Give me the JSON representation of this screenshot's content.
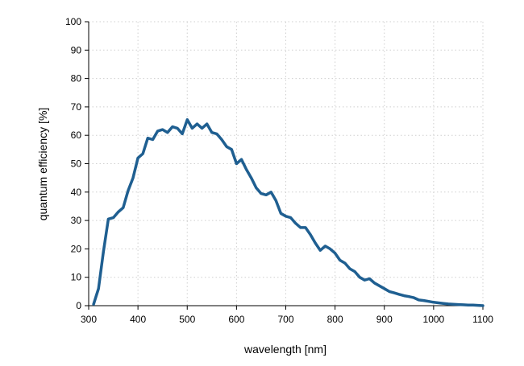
{
  "chart_data": {
    "type": "line",
    "title": "",
    "xlabel": "wavelength [nm]",
    "ylabel": "quantum efficiency [%]",
    "xlim": [
      300,
      1100
    ],
    "ylim": [
      0,
      100
    ],
    "xticks": [
      300,
      400,
      500,
      600,
      700,
      800,
      900,
      1000,
      1100
    ],
    "yticks": [
      0,
      10,
      20,
      30,
      40,
      50,
      60,
      70,
      80,
      90,
      100
    ],
    "grid": true,
    "series_color": "#1f5f91",
    "series": [
      {
        "name": "quantum efficiency",
        "x": [
          310,
          320,
          330,
          340,
          350,
          360,
          370,
          380,
          390,
          400,
          410,
          420,
          430,
          440,
          450,
          460,
          470,
          480,
          490,
          500,
          510,
          520,
          530,
          540,
          550,
          560,
          570,
          580,
          590,
          600,
          610,
          620,
          630,
          640,
          650,
          660,
          670,
          680,
          690,
          700,
          710,
          720,
          730,
          740,
          750,
          760,
          770,
          780,
          790,
          800,
          810,
          820,
          830,
          840,
          850,
          860,
          870,
          880,
          890,
          900,
          910,
          920,
          930,
          940,
          950,
          960,
          970,
          980,
          990,
          1000,
          1010,
          1020,
          1030,
          1040,
          1050,
          1060,
          1070,
          1080,
          1090,
          1100
        ],
        "values": [
          0.5,
          6,
          19,
          30.5,
          31,
          33,
          34.5,
          40.5,
          45,
          52,
          53.5,
          59,
          58.5,
          61.5,
          62,
          61,
          63,
          62.5,
          60.5,
          65.5,
          62.5,
          64,
          62.5,
          64,
          61,
          60.5,
          58.5,
          56,
          55,
          50,
          51.5,
          48,
          45,
          41.5,
          39.5,
          39,
          40,
          37,
          32.5,
          31.5,
          31,
          29,
          27.5,
          27.5,
          25,
          22,
          19.5,
          21,
          20,
          18.5,
          16,
          15,
          13,
          12,
          10,
          9,
          9.5,
          8,
          7,
          6,
          5,
          4.5,
          4,
          3.5,
          3.2,
          2.8,
          2,
          1.8,
          1.5,
          1.2,
          1,
          0.8,
          0.6,
          0.5,
          0.4,
          0.3,
          0.2,
          0.2,
          0.1,
          0
        ]
      }
    ]
  }
}
